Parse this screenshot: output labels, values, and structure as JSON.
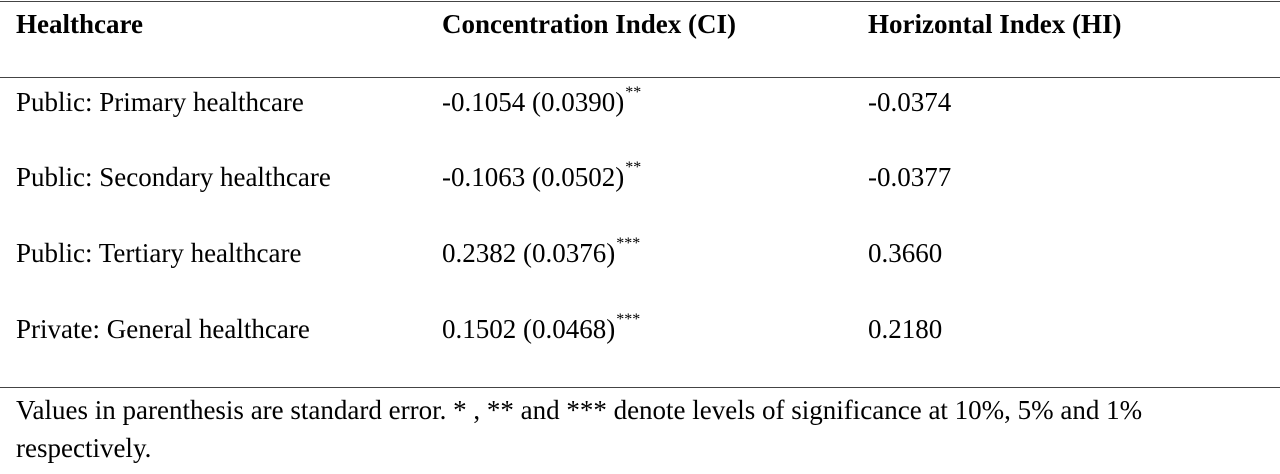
{
  "table": {
    "headers": [
      "Healthcare",
      "Concentration Index (CI)",
      "Horizontal Index (HI)"
    ],
    "rows": [
      {
        "healthcare": "Public: Primary healthcare",
        "ci": "-0.1054 (0.0390)",
        "ci_sig": "**",
        "hi": "-0.0374"
      },
      {
        "healthcare": "Public: Secondary healthcare",
        "ci": "-0.1063 (0.0502)",
        "ci_sig": "**",
        "hi": "-0.0377"
      },
      {
        "healthcare": "Public: Tertiary healthcare",
        "ci": "0.2382 (0.0376)",
        "ci_sig": "***",
        "hi": "0.3660"
      },
      {
        "healthcare": "Private: General healthcare",
        "ci": "0.1502 (0.0468)",
        "ci_sig": "***",
        "hi": "0.2180"
      }
    ],
    "note_line1": "Values in parenthesis are standard error. * , ** and *** denote levels of significance at 10%, 5% and 1%",
    "note_line2": "respectively."
  }
}
